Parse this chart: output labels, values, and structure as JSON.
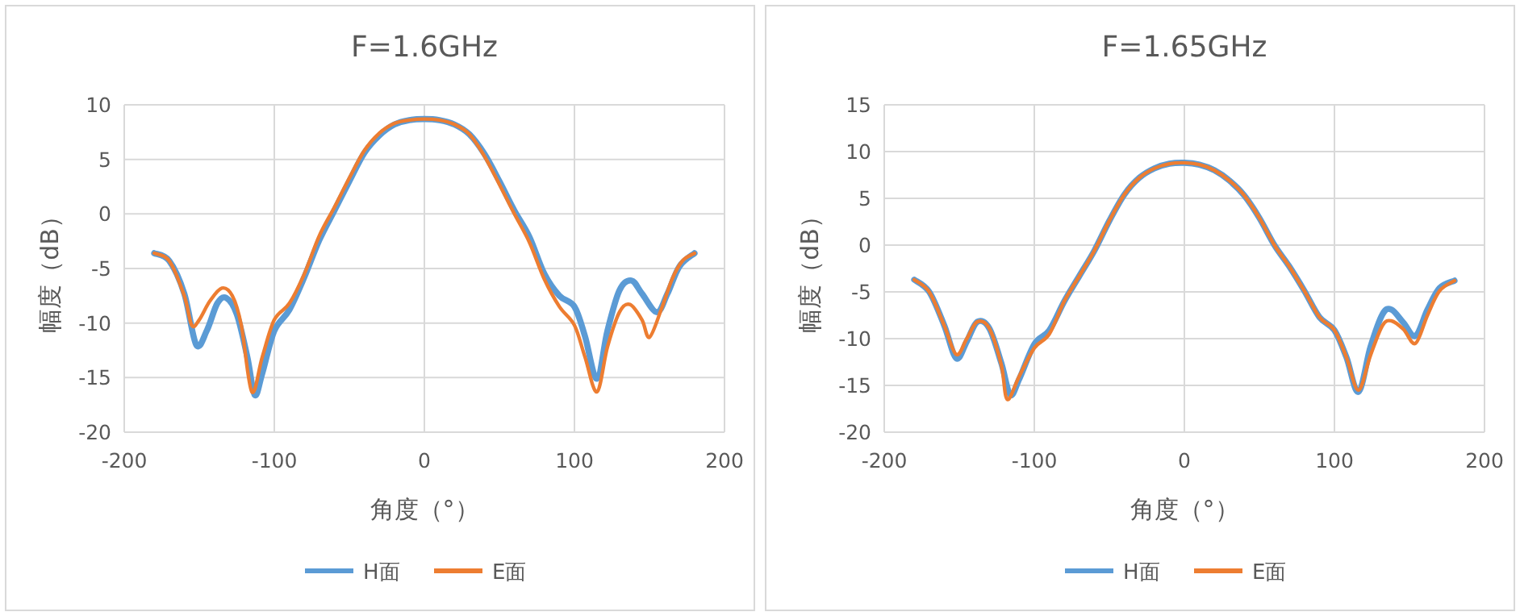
{
  "chart_data": [
    {
      "type": "line",
      "title": "F=1.6GHz",
      "xlabel": "角度（°）",
      "ylabel": "幅度（dB）",
      "xlim": [
        -200,
        200
      ],
      "ylim": [
        -20,
        10
      ],
      "xticks": [
        -200,
        -100,
        0,
        100,
        200
      ],
      "yticks": [
        -20,
        -15,
        -10,
        -5,
        0,
        5,
        10
      ],
      "grid": true,
      "legend": "bottom",
      "marker": "none",
      "line_style": "solid",
      "series": [
        {
          "name": "H面",
          "color": "#5b9bd5",
          "x": [
            -180,
            -170,
            -160,
            -152,
            -145,
            -138,
            -132,
            -125,
            -118,
            -113,
            -108,
            -100,
            -90,
            -80,
            -70,
            -60,
            -50,
            -40,
            -30,
            -20,
            -10,
            0,
            10,
            20,
            30,
            40,
            50,
            60,
            70,
            80,
            90,
            100,
            107,
            115,
            122,
            130,
            138,
            145,
            155,
            162,
            170,
            180
          ],
          "values": [
            -3.6,
            -4.3,
            -7.3,
            -12.0,
            -10.7,
            -8.2,
            -7.7,
            -9.2,
            -13.1,
            -16.6,
            -14.6,
            -10.7,
            -8.8,
            -5.8,
            -2.4,
            0.3,
            3.0,
            5.6,
            7.2,
            8.2,
            8.6,
            8.7,
            8.6,
            8.2,
            7.3,
            5.5,
            3.0,
            0.3,
            -2.1,
            -5.5,
            -7.5,
            -8.5,
            -11.2,
            -15.1,
            -10.7,
            -7.0,
            -6.1,
            -7.3,
            -9.0,
            -7.3,
            -4.8,
            -3.6
          ]
        },
        {
          "name": "E面",
          "color": "#ed7d31",
          "x": [
            -180,
            -170,
            -160,
            -155,
            -150,
            -143,
            -135,
            -128,
            -122,
            -115,
            -108,
            -100,
            -90,
            -80,
            -70,
            -60,
            -50,
            -40,
            -30,
            -20,
            -10,
            0,
            10,
            20,
            30,
            40,
            50,
            60,
            70,
            80,
            90,
            100,
            107,
            115,
            122,
            130,
            137,
            145,
            150,
            158,
            165,
            172,
            180
          ],
          "values": [
            -3.6,
            -4.3,
            -7.5,
            -10.2,
            -9.7,
            -8.0,
            -6.8,
            -7.5,
            -10.2,
            -16.3,
            -13.1,
            -9.7,
            -8.2,
            -5.5,
            -2.0,
            0.6,
            3.3,
            5.8,
            7.4,
            8.3,
            8.6,
            8.7,
            8.6,
            8.2,
            7.3,
            5.3,
            2.7,
            0.0,
            -2.6,
            -6.0,
            -8.5,
            -10.2,
            -13.1,
            -16.3,
            -12.2,
            -9.0,
            -8.3,
            -9.7,
            -11.3,
            -8.7,
            -6.0,
            -4.3,
            -3.6
          ]
        }
      ]
    },
    {
      "type": "line",
      "title": "F=1.65GHz",
      "xlabel": "角度（°）",
      "ylabel": "幅度（dB）",
      "xlim": [
        -200,
        200
      ],
      "ylim": [
        -20,
        15
      ],
      "xticks": [
        -200,
        -100,
        0,
        100,
        200
      ],
      "yticks": [
        -20,
        -15,
        -10,
        -5,
        0,
        5,
        10,
        15
      ],
      "grid": true,
      "legend": "bottom",
      "marker": "none",
      "line_style": "solid",
      "series": [
        {
          "name": "H面",
          "color": "#5b9bd5",
          "x": [
            -180,
            -170,
            -160,
            -152,
            -145,
            -138,
            -130,
            -122,
            -116,
            -110,
            -100,
            -90,
            -80,
            -70,
            -60,
            -50,
            -40,
            -30,
            -20,
            -10,
            0,
            10,
            20,
            30,
            40,
            50,
            60,
            70,
            80,
            90,
            100,
            108,
            116,
            124,
            132,
            138,
            146,
            154,
            162,
            170,
            180
          ],
          "values": [
            -3.7,
            -5.0,
            -8.6,
            -12.1,
            -10.3,
            -8.2,
            -8.9,
            -12.6,
            -16.0,
            -14.3,
            -10.6,
            -9.1,
            -6.0,
            -3.3,
            -0.6,
            2.6,
            5.4,
            7.2,
            8.2,
            8.7,
            8.8,
            8.6,
            8.0,
            6.9,
            5.3,
            2.9,
            0.0,
            -2.3,
            -4.9,
            -7.7,
            -9.1,
            -12.0,
            -15.7,
            -10.9,
            -7.4,
            -6.9,
            -8.3,
            -9.7,
            -6.9,
            -4.6,
            -3.8
          ]
        },
        {
          "name": "E面",
          "color": "#ed7d31",
          "x": [
            -180,
            -170,
            -160,
            -152,
            -145,
            -138,
            -130,
            -122,
            -118,
            -110,
            -100,
            -90,
            -80,
            -70,
            -60,
            -50,
            -40,
            -30,
            -20,
            -10,
            0,
            10,
            20,
            30,
            40,
            50,
            60,
            70,
            80,
            90,
            100,
            108,
            116,
            124,
            132,
            138,
            146,
            154,
            162,
            170,
            180
          ],
          "values": [
            -3.7,
            -5.0,
            -8.6,
            -11.7,
            -10.0,
            -8.2,
            -8.9,
            -12.8,
            -16.5,
            -14.0,
            -11.0,
            -9.5,
            -6.0,
            -3.3,
            -0.6,
            2.6,
            5.4,
            7.2,
            8.2,
            8.7,
            8.8,
            8.6,
            8.0,
            6.9,
            5.3,
            2.9,
            0.0,
            -2.3,
            -4.9,
            -7.7,
            -9.1,
            -12.0,
            -15.5,
            -11.8,
            -8.6,
            -8.1,
            -9.0,
            -10.5,
            -7.5,
            -4.9,
            -3.8
          ]
        }
      ]
    }
  ]
}
